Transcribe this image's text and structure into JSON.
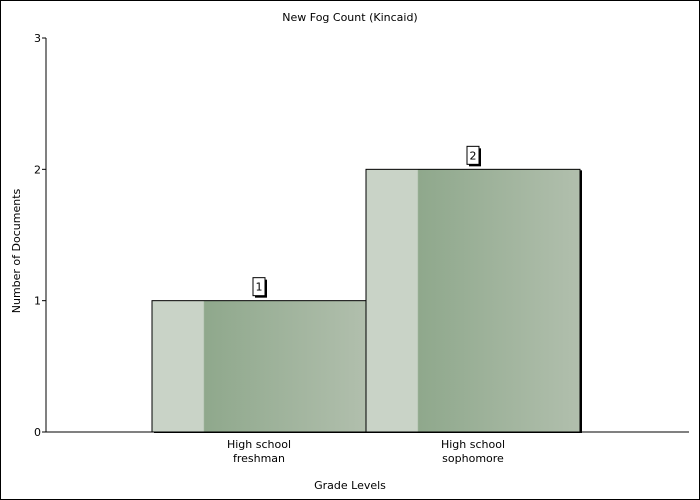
{
  "chart_data": {
    "type": "bar",
    "title": "New Fog Count (Kincaid)",
    "xlabel": "Grade Levels",
    "ylabel": "Number of Documents",
    "categories": [
      [
        "High school",
        "freshman"
      ],
      [
        "High school",
        "sophomore"
      ]
    ],
    "values": [
      1,
      2
    ],
    "data_labels": [
      "1",
      "2"
    ],
    "ylim": [
      0,
      3
    ],
    "yticks": [
      "0",
      "1",
      "2",
      "3"
    ],
    "grid": false,
    "legend": "none",
    "colors": {
      "bar_light": "#c9d3c7",
      "bar_mid": "#8fa88c",
      "bar_end": "#b1bfad",
      "axis": "#000000"
    }
  }
}
